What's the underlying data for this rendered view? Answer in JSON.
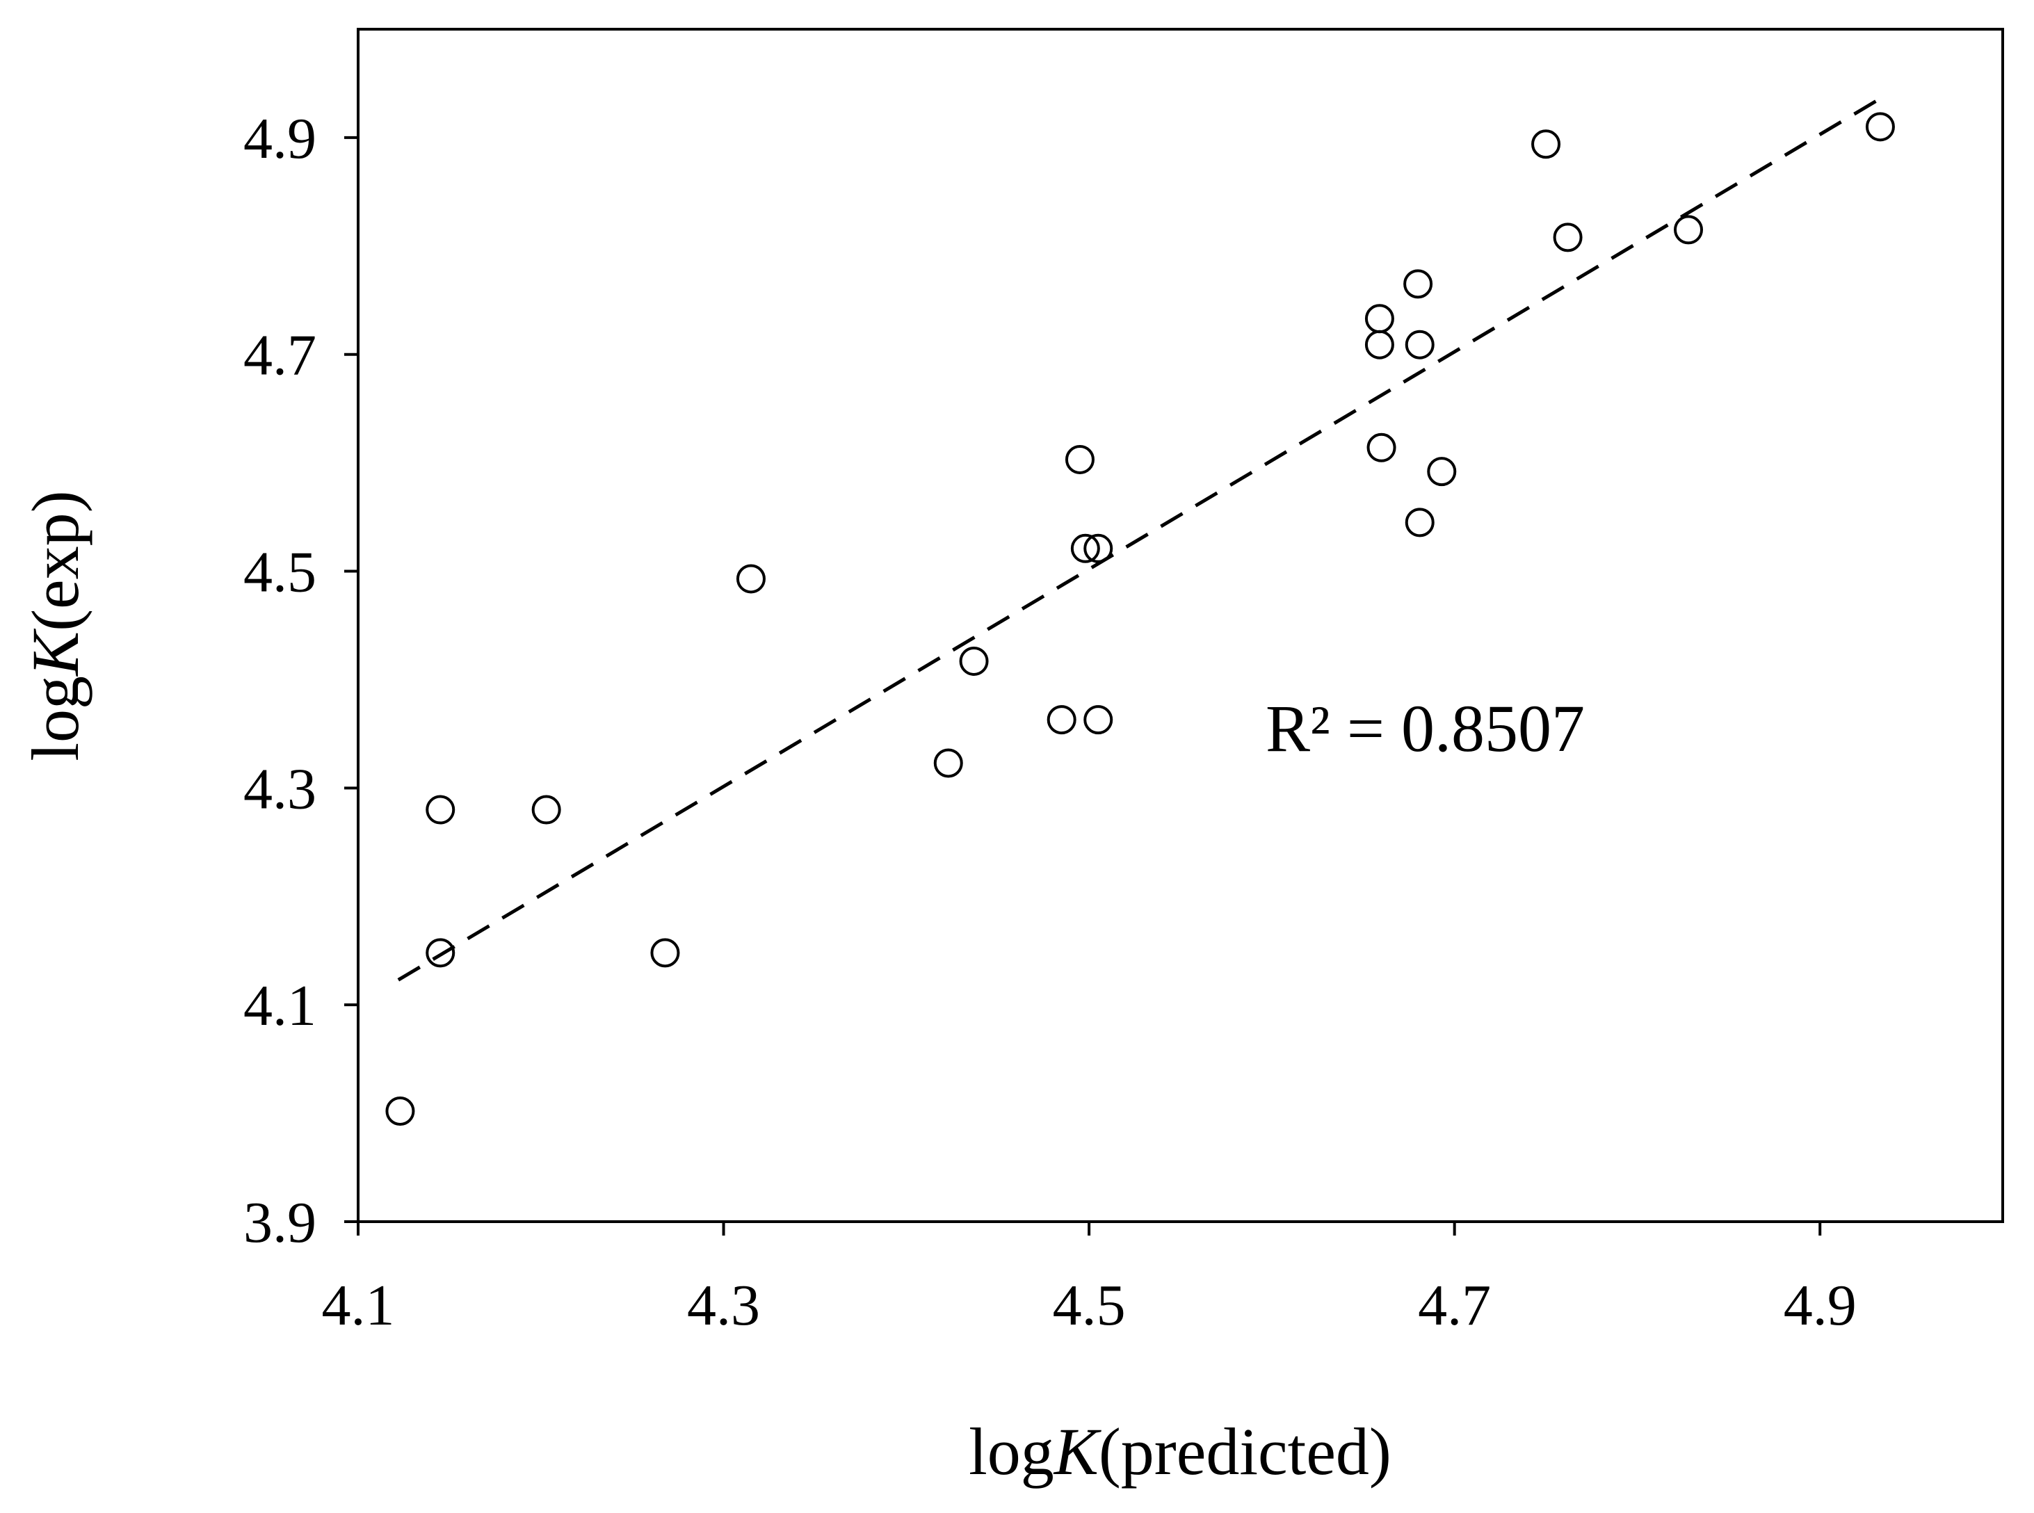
{
  "chart_data": {
    "type": "scatter",
    "xlabel": {
      "prefix": "log",
      "italic": "K",
      "suffix": "(predicted)"
    },
    "ylabel": {
      "prefix": "log",
      "italic": "K",
      "suffix": "(exp)"
    },
    "xlim": [
      4.1,
      5.0
    ],
    "ylim": [
      3.9,
      5.0
    ],
    "x_ticks": [
      4.1,
      4.3,
      4.5,
      4.7,
      4.9
    ],
    "y_ticks": [
      3.9,
      4.1,
      4.3,
      4.5,
      4.7,
      4.9
    ],
    "x_tick_labels": [
      "4.1",
      "4.3",
      "4.5",
      "4.7",
      "4.9"
    ],
    "y_tick_labels": [
      "3.9",
      "4.1",
      "4.3",
      "4.5",
      "4.7",
      "4.9"
    ],
    "grid": false,
    "marker": "open circle",
    "points": [
      {
        "x": 4.123,
        "y": 4.002
      },
      {
        "x": 4.145,
        "y": 4.148
      },
      {
        "x": 4.145,
        "y": 4.28
      },
      {
        "x": 4.203,
        "y": 4.28
      },
      {
        "x": 4.268,
        "y": 4.148
      },
      {
        "x": 4.315,
        "y": 4.493
      },
      {
        "x": 4.423,
        "y": 4.323
      },
      {
        "x": 4.437,
        "y": 4.417
      },
      {
        "x": 4.485,
        "y": 4.363
      },
      {
        "x": 4.495,
        "y": 4.603
      },
      {
        "x": 4.498,
        "y": 4.521
      },
      {
        "x": 4.505,
        "y": 4.521
      },
      {
        "x": 4.505,
        "y": 4.363
      },
      {
        "x": 4.659,
        "y": 4.733
      },
      {
        "x": 4.659,
        "y": 4.709
      },
      {
        "x": 4.66,
        "y": 4.614
      },
      {
        "x": 4.68,
        "y": 4.765
      },
      {
        "x": 4.681,
        "y": 4.709
      },
      {
        "x": 4.681,
        "y": 4.545
      },
      {
        "x": 4.693,
        "y": 4.592
      },
      {
        "x": 4.75,
        "y": 4.894
      },
      {
        "x": 4.762,
        "y": 4.808
      },
      {
        "x": 4.828,
        "y": 4.815
      },
      {
        "x": 4.933,
        "y": 4.91
      }
    ],
    "trendline": {
      "style": "dashed",
      "from": {
        "x": 4.122,
        "y": 4.123
      },
      "to": {
        "x": 4.932,
        "y": 4.935
      }
    },
    "annotation": "R² = 0.8507"
  }
}
